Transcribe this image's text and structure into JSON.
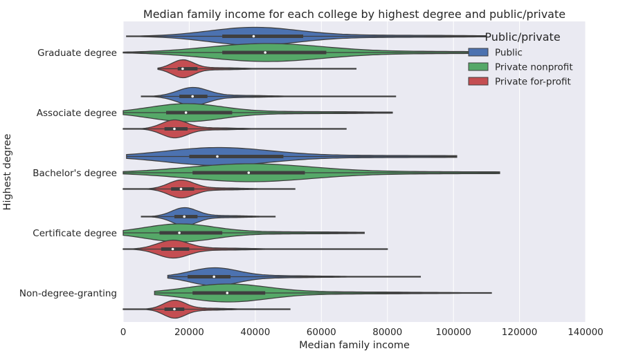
{
  "chart_data": {
    "type": "violin",
    "orientation": "horizontal",
    "title": "Median family income for each college by highest degree and public/private",
    "xlabel": "Median family income",
    "ylabel": "Highest degree",
    "xlim": [
      0,
      140000
    ],
    "xticks": [
      "0",
      "20000",
      "40000",
      "60000",
      "80000",
      "100000",
      "120000",
      "140000"
    ],
    "xtick_values": [
      0,
      20000,
      40000,
      60000,
      80000,
      100000,
      120000,
      140000
    ],
    "grid": true,
    "legend": {
      "title": "Public/private",
      "placement": "top-right",
      "entries": [
        "Public",
        "Private nonprofit",
        "Private for-profit"
      ]
    },
    "categories": [
      "Graduate degree",
      "Associate degree",
      "Bachelor's degree",
      "Certificate degree",
      "Non-degree-granting"
    ],
    "series": [
      {
        "name": "Public",
        "color": "#4c72b0",
        "stats": [
          {
            "min": 1000,
            "q1": 30000,
            "median": 39500,
            "q3": 54500,
            "max": 110000
          },
          {
            "min": 5500,
            "q1": 17000,
            "median": 21000,
            "q3": 25500,
            "max": 82500
          },
          {
            "min": 1000,
            "q1": 20000,
            "median": 28500,
            "q3": 48500,
            "max": 101000
          },
          {
            "min": 5500,
            "q1": 15500,
            "median": 18500,
            "q3": 22500,
            "max": 46000
          },
          {
            "min": 13500,
            "q1": 19500,
            "median": 27500,
            "q3": 32500,
            "max": 90000
          }
        ]
      },
      {
        "name": "Private nonprofit",
        "color": "#55a868",
        "stats": [
          {
            "min": 0,
            "q1": 30000,
            "median": 43000,
            "q3": 61500,
            "max": 110000
          },
          {
            "min": 0,
            "q1": 13000,
            "median": 19000,
            "q3": 33000,
            "max": 81500
          },
          {
            "min": 0,
            "q1": 21000,
            "median": 38000,
            "q3": 55000,
            "max": 114000
          },
          {
            "min": 0,
            "q1": 11000,
            "median": 17000,
            "q3": 30000,
            "max": 73000
          },
          {
            "min": 9500,
            "q1": 21000,
            "median": 31500,
            "q3": 43000,
            "max": 111500
          }
        ]
      },
      {
        "name": "Private for-profit",
        "color": "#c44e52",
        "stats": [
          {
            "min": 10500,
            "q1": 16500,
            "median": 18000,
            "q3": 22500,
            "max": 70500
          },
          {
            "min": 0,
            "q1": 12500,
            "median": 15500,
            "q3": 19500,
            "max": 67500
          },
          {
            "min": 0,
            "q1": 14500,
            "median": 17500,
            "q3": 21500,
            "max": 52000
          },
          {
            "min": 0,
            "q1": 11500,
            "median": 15000,
            "q3": 20000,
            "max": 80000
          },
          {
            "min": 0,
            "q1": 12500,
            "median": 15500,
            "q3": 18500,
            "max": 50500
          }
        ]
      }
    ]
  }
}
